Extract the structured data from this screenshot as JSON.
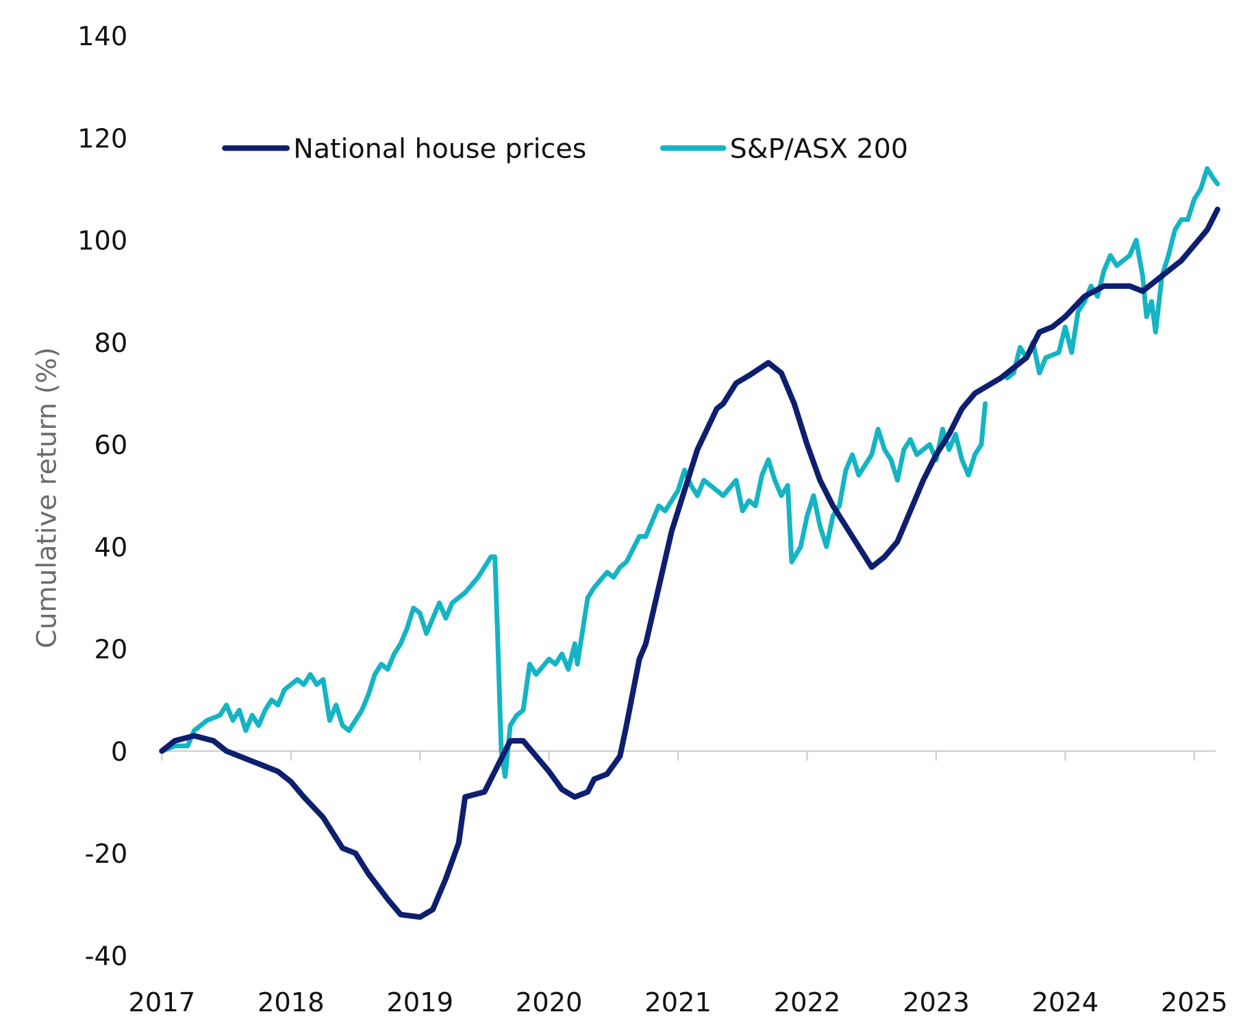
{
  "chart_data": {
    "type": "line",
    "title": "",
    "xlabel": "",
    "ylabel": "Cumulative return (%)",
    "xlim": [
      2017,
      2025.18
    ],
    "ylim": [
      -40,
      140
    ],
    "yticks": [
      140,
      120,
      100,
      80,
      60,
      40,
      20,
      0,
      -20,
      -40
    ],
    "ytick_labels": [
      "140",
      "120",
      "100",
      "80",
      "60",
      "40",
      "20",
      "0",
      "-20",
      "-40"
    ],
    "xticks": [
      2017,
      2018,
      2019,
      2020,
      2021,
      2022,
      2023,
      2024,
      2025
    ],
    "xtick_labels": [
      "2017",
      "2018",
      "2019",
      "2020",
      "2021",
      "2022",
      "2023",
      "2024",
      "2025"
    ],
    "grid": false,
    "legend_placement": "top",
    "series": [
      {
        "name": "National house prices",
        "color": "#0d1f6e",
        "x": [
          2017.0,
          2017.1,
          2017.25,
          2017.4,
          2017.5,
          2017.6,
          2017.75,
          2017.9,
          2018.0,
          2018.1,
          2018.25,
          2018.35,
          2018.4,
          2018.5,
          2018.6,
          2018.75,
          2018.85,
          2019.0,
          2019.1,
          2019.2,
          2019.3,
          2019.35,
          2019.5,
          2019.6,
          2019.7,
          2019.8,
          2019.9,
          2020.0,
          2020.1,
          2020.2,
          2020.3,
          2020.35,
          2020.45,
          2020.55,
          2020.6,
          2020.7,
          2020.75,
          2020.85,
          2020.95,
          2021.05,
          2021.15,
          2021.3,
          2021.35,
          2021.45,
          2021.55,
          2021.7,
          2021.8,
          2021.9,
          2022.0,
          2022.1,
          2022.2,
          2022.3,
          2022.4,
          2022.5,
          2022.6,
          2022.7,
          2022.8,
          2022.9,
          2023.0,
          2023.1,
          2023.2,
          2023.3,
          2023.5,
          2023.7,
          2023.8,
          2023.9,
          2024.0,
          2024.15,
          2024.3,
          2024.5,
          2024.6,
          2024.75,
          2024.9,
          2025.0,
          2025.1,
          2025.18
        ],
        "y": [
          0,
          2,
          3,
          2,
          0,
          -1,
          -2.5,
          -4,
          -6,
          -9,
          -13,
          -17,
          -19,
          -20,
          -24,
          -29,
          -32,
          -32.5,
          -31,
          -25,
          -18,
          -9,
          -8,
          -3,
          2,
          2,
          -1,
          -4,
          -7.5,
          -9,
          -8,
          -5.5,
          -4.5,
          -1,
          5,
          18,
          21,
          32,
          43,
          51,
          59,
          67,
          68,
          72,
          73.5,
          76,
          74,
          68,
          60,
          53,
          48,
          44,
          40,
          36,
          38,
          41,
          47,
          53,
          58,
          62,
          67,
          70,
          73,
          77,
          82,
          83,
          85,
          89,
          91,
          91,
          90,
          93,
          96,
          99,
          102,
          106
        ]
      },
      {
        "name": "S&P/ASX 200",
        "color": "#14b4c4",
        "x": [
          2017.0,
          2017.1,
          2017.2,
          2017.25,
          2017.35,
          2017.45,
          2017.5,
          2017.55,
          2017.6,
          2017.65,
          2017.7,
          2017.75,
          2017.8,
          2017.85,
          2017.9,
          2017.95,
          2018.05,
          2018.1,
          2018.15,
          2018.2,
          2018.25,
          2018.3,
          2018.35,
          2018.4,
          2018.45,
          2018.55,
          2018.6,
          2018.65,
          2018.7,
          2018.75,
          2018.8,
          2018.85,
          2018.9,
          2018.95,
          2019.0,
          2019.05,
          2019.1,
          2019.15,
          2019.2,
          2019.25,
          2019.3,
          2019.35,
          2019.45,
          2019.55,
          2019.58,
          2019.6,
          2019.63,
          2019.66,
          2019.7,
          2019.75,
          2019.8,
          2019.85,
          2019.9,
          2020.0,
          2020.05,
          2020.1,
          2020.15,
          2020.2,
          2020.22,
          2020.3,
          2020.35,
          2020.45,
          2020.5,
          2020.55,
          2020.6,
          2020.7,
          2020.75,
          2020.85,
          2020.9,
          2021.0,
          2021.05,
          2021.1,
          2021.15,
          2021.2,
          2021.25,
          2021.35,
          2021.45,
          2021.5,
          2021.55,
          2021.6,
          2021.65,
          2021.7,
          2021.75,
          2021.8,
          2021.85,
          2021.88,
          2021.95,
          2022.0,
          2022.05,
          2022.1,
          2022.15,
          2022.2,
          2022.25,
          2022.3,
          2022.35,
          2022.4,
          2022.5,
          2022.55,
          2022.6,
          2022.65,
          2022.7,
          2022.75,
          2022.8,
          2022.85,
          2022.95,
          2023.0,
          2023.05,
          2023.1,
          2023.15,
          2023.2,
          2023.25,
          2023.3,
          2023.35,
          2023.38,
          null,
          2023.55,
          2023.6,
          2023.65,
          2023.7,
          2023.75,
          2023.8,
          2023.85,
          2023.95,
          2024.0,
          2024.05,
          2024.1,
          2024.15,
          2024.2,
          2024.25,
          2024.3,
          2024.35,
          2024.4,
          2024.5,
          2024.55,
          2024.6,
          2024.63,
          2024.67,
          2024.7,
          2024.75,
          2024.8,
          2024.85,
          2024.9,
          2024.95,
          2025.0,
          2025.05,
          2025.1,
          2025.15,
          2025.18
        ],
        "y": [
          0,
          1,
          1,
          4,
          6,
          7,
          9,
          6,
          8,
          4,
          7,
          5,
          8,
          10,
          9,
          12,
          14,
          13,
          15,
          13,
          14,
          6,
          9,
          5,
          4,
          8,
          11,
          15,
          17,
          16,
          19,
          21,
          24,
          28,
          27,
          23,
          26,
          29,
          26,
          29,
          30,
          31,
          34,
          38,
          38,
          24,
          0,
          -5,
          5,
          7,
          8,
          17,
          15,
          18,
          17,
          19,
          16,
          21,
          17,
          30,
          32,
          35,
          34,
          36,
          37,
          42,
          42,
          48,
          47,
          51,
          55,
          52,
          50,
          53,
          52,
          50,
          53,
          47,
          49,
          48,
          54,
          57,
          53,
          50,
          52,
          37,
          40,
          46,
          50,
          44,
          40,
          46,
          48,
          55,
          58,
          54,
          58,
          63,
          59,
          57,
          53,
          59,
          61,
          58,
          60,
          57,
          63,
          59,
          62,
          57,
          54,
          58,
          60,
          68,
          null,
          73,
          74,
          79,
          77,
          80,
          74,
          77,
          78,
          83,
          78,
          86,
          88,
          91,
          89,
          94,
          97,
          95,
          97,
          100,
          93,
          85,
          88,
          82,
          93,
          97,
          102,
          104,
          104,
          108,
          110,
          114,
          112,
          111
        ]
      }
    ]
  }
}
